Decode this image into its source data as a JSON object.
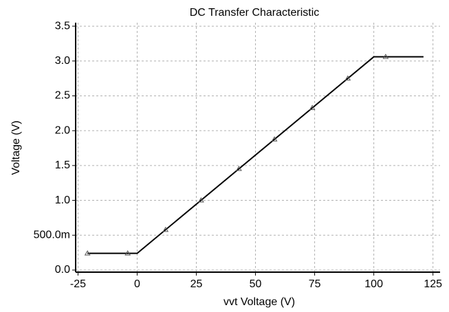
{
  "chart_data": {
    "type": "line",
    "title": "DC Transfer Characteristic",
    "xlabel": "vvt Voltage (V)",
    "ylabel": "Voltage (V)",
    "xlim": [
      -26,
      128
    ],
    "xticks": [
      -25,
      0,
      25,
      50,
      75,
      100,
      125
    ],
    "ylim": [
      -0.03,
      3.55
    ],
    "yticks": [
      {
        "value": 0,
        "label": "0.0"
      },
      {
        "value": 0.5,
        "label": "500.0m"
      },
      {
        "value": 1,
        "label": "1.0"
      },
      1.5,
      {
        "value": 2,
        "label": "2.0"
      },
      2.5,
      {
        "value": 3,
        "label": "3.0"
      },
      {
        "value": 3.5,
        "label": "3.5"
      }
    ],
    "grid": true,
    "series": [
      {
        "x": [
          -21,
          0,
          100,
          121
        ],
        "values": [
          0.24,
          0.24,
          3.06,
          3.06
        ],
        "color": "#000000",
        "marker": "none"
      },
      {
        "x": [
          -21,
          -4,
          12,
          27,
          43,
          58,
          74,
          89,
          105
        ],
        "values": [
          0.24,
          0.24,
          0.578,
          1.001,
          1.453,
          1.876,
          2.327,
          2.75,
          3.06
        ],
        "color": "#555555",
        "marker": "triangle",
        "line": false
      }
    ]
  }
}
